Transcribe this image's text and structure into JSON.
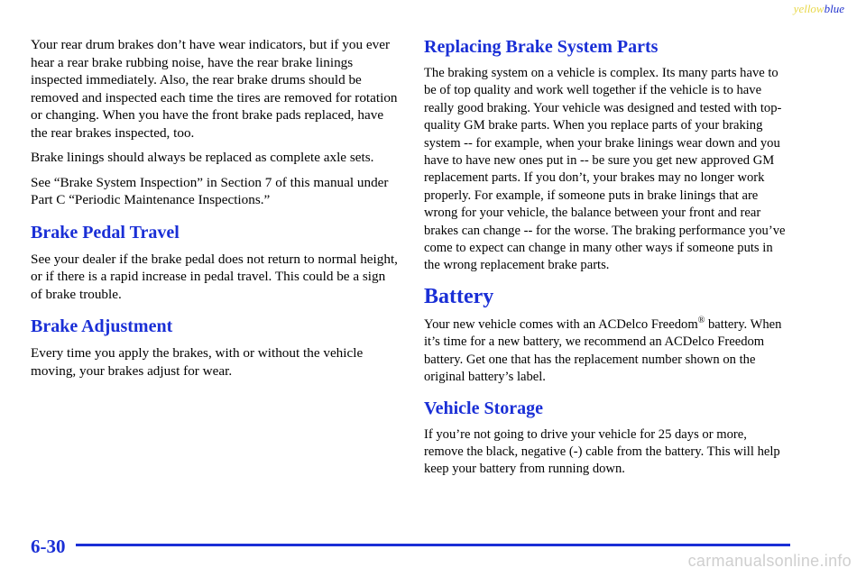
{
  "corner_tag": {
    "yellow": "yellow",
    "blue": "blue"
  },
  "left": {
    "intro_p1": "Your rear drum brakes don’t have wear indicators, but if you ever hear a rear brake rubbing noise, have the rear brake linings inspected immediately. Also, the rear brake drums should be removed and inspected each time the tires are removed for rotation or changing. When you have the front brake pads replaced, have the rear brakes inspected, too.",
    "intro_p2": "Brake linings should always be replaced as complete axle sets.",
    "intro_p3": "See “Brake System Inspection” in Section 7 of this manual under Part C “Periodic Maintenance Inspections.”",
    "pedal_heading": "Brake Pedal Travel",
    "pedal_p": "See your dealer if the brake pedal does not return to normal height, or if there is a rapid increase in pedal travel. This could be a sign of brake trouble.",
    "adjust_heading": "Brake Adjustment",
    "adjust_p": "Every time you apply the brakes, with or without the vehicle moving, your brakes adjust for wear."
  },
  "right": {
    "replace_heading": "Replacing Brake System Parts",
    "replace_p": "The braking system on a vehicle is complex. Its many parts have to be of top quality and work well together if the vehicle is to have really good braking. Your vehicle was designed and tested with top-quality GM brake parts. When you replace parts of your braking system -- for example, when your brake linings wear down and you have to have new ones put in -- be sure you get new approved GM replacement parts. If you don’t, your brakes may no longer work properly. For example, if someone puts in brake linings that are wrong for your vehicle, the balance between your front and rear brakes can change -- for the worse. The braking performance you’ve come to expect can change in many other ways if someone puts in the wrong replacement brake parts.",
    "battery_heading": "Battery",
    "battery_p_a": "Your new vehicle comes with an ACDelco Freedom",
    "battery_reg": "®",
    "battery_p_b": "battery. When it’s time for a new battery, we recommend an ACDelco Freedom battery. Get one that has the replacement number shown on the original battery’s label.",
    "storage_heading": "Vehicle Storage",
    "storage_p": "If you’re not going to drive your vehicle for 25 days or more, remove the black, negative (-) cable from the battery. This will help keep your battery from running down."
  },
  "footer": {
    "page_number": "6-30",
    "watermark": "carmanualsonline.info"
  },
  "colors": {
    "heading": "#1a2fd6",
    "rule": "#1a2fd6",
    "tag_yellow": "#e8d84a",
    "tag_blue": "#2233cc"
  }
}
